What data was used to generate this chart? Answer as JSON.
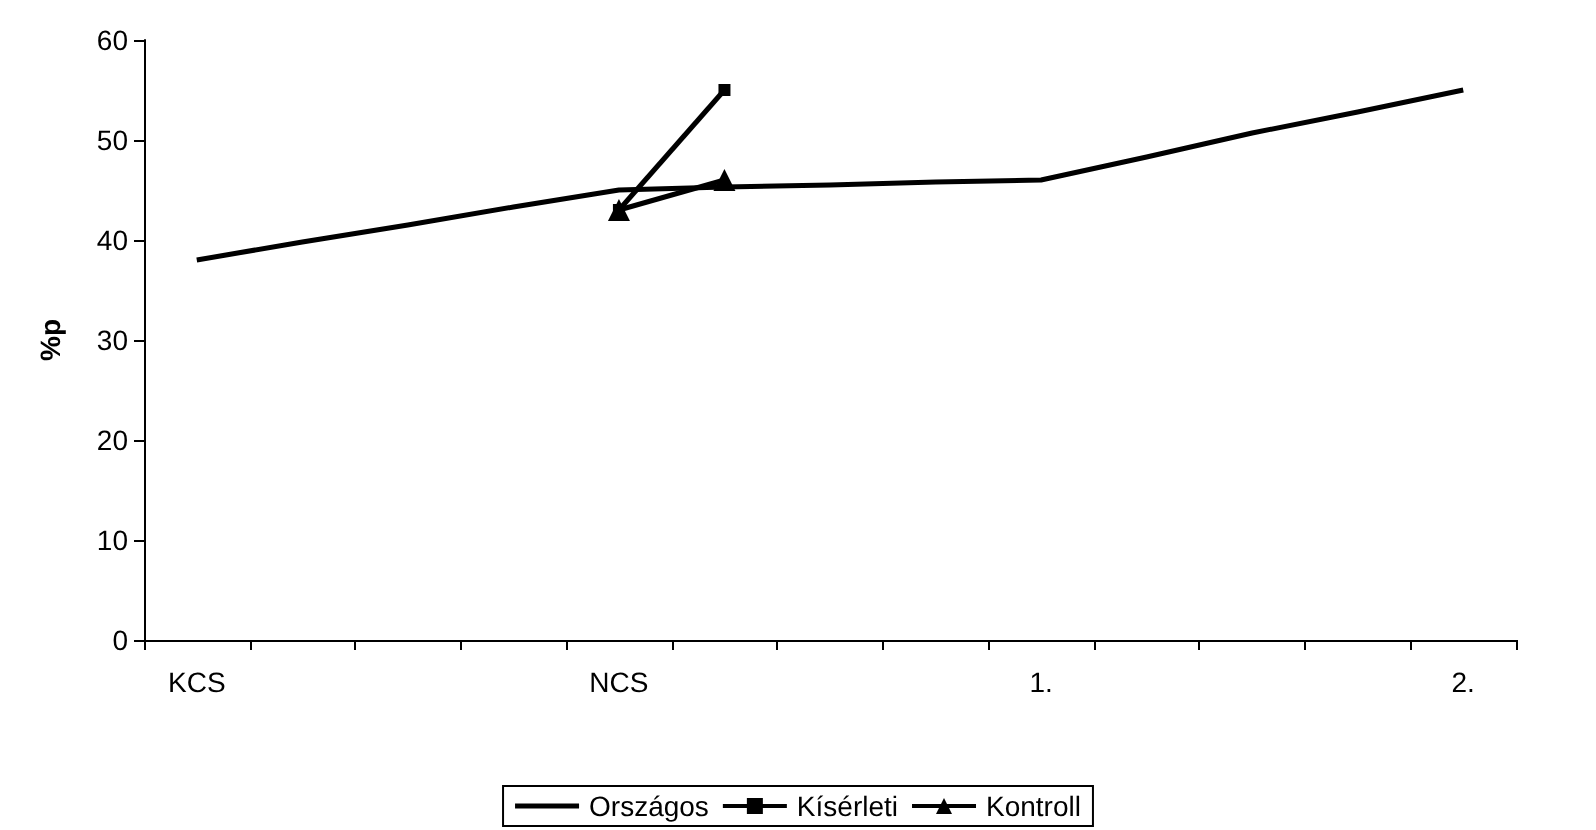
{
  "chart_data": {
    "type": "line",
    "ylabel": "%p",
    "categories": [
      "KCS",
      null,
      null,
      null,
      "NCS",
      null,
      null,
      null,
      "1.",
      null,
      null,
      null,
      "2."
    ],
    "series": [
      {
        "name": "Országos",
        "color": "#000000",
        "marker": "none",
        "values": [
          38,
          39.8,
          41.5,
          43.3,
          45,
          45.3,
          45.5,
          45.8,
          46,
          48.3,
          50.7,
          52.8,
          55
        ]
      },
      {
        "name": "Kísérleti",
        "color": "#000000",
        "marker": "square",
        "values": [
          null,
          null,
          null,
          null,
          43,
          55,
          null,
          null,
          null,
          null,
          null,
          null,
          null
        ]
      },
      {
        "name": "Kontroll",
        "color": "#000000",
        "marker": "triangle",
        "values": [
          null,
          null,
          null,
          null,
          43,
          46,
          null,
          null,
          null,
          null,
          null,
          null,
          null
        ]
      }
    ],
    "ylim": [
      0,
      60
    ],
    "yticks": [
      0,
      10,
      20,
      30,
      40,
      50,
      60
    ],
    "grid": false,
    "legend": "bottom",
    "line_style": "solid"
  }
}
